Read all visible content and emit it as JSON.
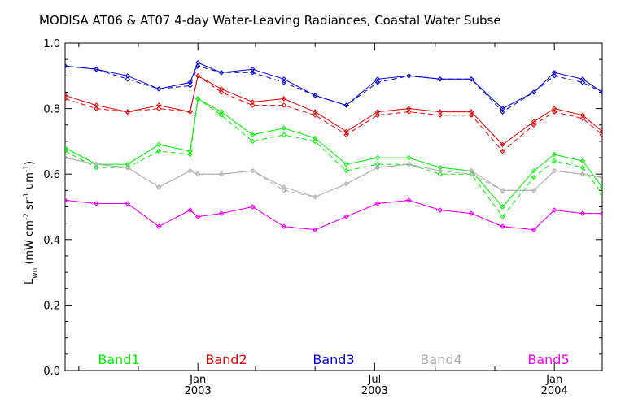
{
  "chart_data": {
    "type": "line",
    "title": "MODISA AT06 & AT07 4-day Water-Leaving Radiances, Coastal Water Subse",
    "ylabel": "L_wn (mW cm^-2 sr^-1 um^-1)",
    "ylabel_parts": {
      "main": "L",
      "sub": "wn",
      "units_open": "(mW cm",
      "exp1": "-2",
      "sr": "sr",
      "exp2": "-1",
      "um": "um",
      "exp3": "-1",
      "close": ")"
    },
    "ylim": [
      0.0,
      1.0
    ],
    "yticks": [
      "0.0",
      "0.2",
      "0.4",
      "0.6",
      "0.8",
      "1.0"
    ],
    "xlim": [
      "2002-08-18",
      "2004-02-19"
    ],
    "xticks": [
      {
        "date": "2003-01-01",
        "month": "Jan",
        "year": "2003"
      },
      {
        "date": "2003-07-01",
        "month": "Jul",
        "year": "2003"
      },
      {
        "date": "2004-01-01",
        "month": "Jan",
        "year": "2004"
      }
    ],
    "x": [
      "2002-08-18",
      "2002-09-19",
      "2002-10-21",
      "2002-11-22",
      "2002-12-24",
      "2003-01-01",
      "2003-01-25",
      "2003-02-26",
      "2003-03-30",
      "2003-05-01",
      "2003-06-02",
      "2003-07-04",
      "2003-08-05",
      "2003-09-06",
      "2003-10-08",
      "2003-11-09",
      "2003-12-11",
      "2004-01-01",
      "2004-01-30",
      "2004-02-19"
    ],
    "series": [
      {
        "name": "Band1",
        "color": "#00ee00",
        "at06": [
          0.68,
          0.63,
          0.63,
          0.69,
          0.67,
          0.83,
          0.79,
          0.72,
          0.74,
          0.71,
          0.63,
          0.65,
          0.65,
          0.62,
          0.61,
          0.5,
          0.61,
          0.66,
          0.64,
          0.56
        ],
        "at07": [
          0.67,
          0.62,
          0.62,
          0.67,
          0.66,
          0.83,
          0.78,
          0.7,
          0.72,
          0.7,
          0.61,
          0.63,
          0.63,
          0.6,
          0.6,
          0.47,
          0.59,
          0.64,
          0.62,
          0.54
        ]
      },
      {
        "name": "Band2",
        "color": "#dd0000",
        "at06": [
          0.84,
          0.81,
          0.79,
          0.81,
          0.79,
          0.9,
          0.86,
          0.82,
          0.83,
          0.79,
          0.73,
          0.79,
          0.8,
          0.79,
          0.79,
          0.69,
          0.76,
          0.8,
          0.78,
          0.73
        ],
        "at07": [
          0.83,
          0.8,
          0.79,
          0.8,
          0.79,
          0.9,
          0.85,
          0.81,
          0.81,
          0.78,
          0.72,
          0.78,
          0.79,
          0.78,
          0.78,
          0.67,
          0.75,
          0.79,
          0.77,
          0.72
        ]
      },
      {
        "name": "Band3",
        "color": "#0000cc",
        "at06": [
          0.93,
          0.92,
          0.9,
          0.86,
          0.88,
          0.94,
          0.91,
          0.92,
          0.89,
          0.84,
          0.81,
          0.89,
          0.9,
          0.89,
          0.89,
          0.8,
          0.85,
          0.91,
          0.89,
          0.85
        ],
        "at07": [
          0.93,
          0.92,
          0.89,
          0.86,
          0.87,
          0.93,
          0.91,
          0.91,
          0.88,
          0.84,
          0.81,
          0.88,
          0.9,
          0.89,
          0.89,
          0.79,
          0.85,
          0.9,
          0.88,
          0.85
        ]
      },
      {
        "name": "Band4",
        "color": "#aaaaaa",
        "at06": [
          0.65,
          0.63,
          0.62,
          0.56,
          0.61,
          0.6,
          0.6,
          0.61,
          0.56,
          0.53,
          0.57,
          0.62,
          0.63,
          0.61,
          0.61,
          0.55,
          0.55,
          0.61,
          0.6,
          0.59
        ],
        "at07": [
          0.65,
          0.63,
          0.62,
          0.56,
          0.61,
          0.6,
          0.6,
          0.61,
          0.55,
          0.53,
          0.57,
          0.62,
          0.63,
          0.61,
          0.6,
          0.55,
          0.55,
          0.61,
          0.6,
          0.59
        ]
      },
      {
        "name": "Band5",
        "color": "#ee00ee",
        "at06": [
          0.52,
          0.51,
          0.51,
          0.44,
          0.49,
          0.47,
          0.48,
          0.5,
          0.44,
          0.43,
          0.47,
          0.51,
          0.52,
          0.49,
          0.48,
          0.44,
          0.43,
          0.49,
          0.48,
          0.48
        ],
        "at07": [
          0.52,
          0.51,
          0.51,
          0.44,
          0.49,
          0.47,
          0.48,
          0.5,
          0.44,
          0.43,
          0.47,
          0.51,
          0.52,
          0.49,
          0.48,
          0.44,
          0.43,
          0.49,
          0.48,
          0.48
        ]
      }
    ],
    "legend_placement": "bottom-inside",
    "grid": false
  }
}
